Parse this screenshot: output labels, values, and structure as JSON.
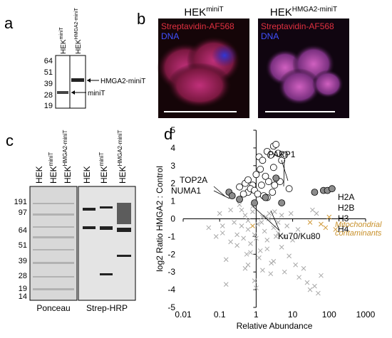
{
  "panel_a": {
    "label": "a",
    "marker_ticks": [
      "64",
      "51",
      "39",
      "28",
      "19"
    ],
    "lanes": [
      {
        "base": "HEK",
        "sup": "miniT"
      },
      {
        "base": "HEK",
        "sup": "HMGA2-miniT"
      }
    ],
    "band_labels": [
      "HMGA2-miniT",
      "miniT"
    ]
  },
  "panel_b": {
    "label": "b",
    "images": [
      {
        "title": {
          "base": "HEK",
          "sup": "miniT"
        },
        "stain": "Streptavidin-AF568",
        "dna": "DNA"
      },
      {
        "title": {
          "base": "HEK",
          "sup": "HMGA2-miniT"
        },
        "stain": "Streptavidin-AF568",
        "dna": "DNA"
      }
    ]
  },
  "panel_c": {
    "label": "c",
    "marker_ticks": [
      "191",
      "97",
      "64",
      "51",
      "39",
      "28",
      "19",
      "14"
    ],
    "lanes": [
      {
        "base": "HEK",
        "sup": ""
      },
      {
        "base": "HEK",
        "sup": "miniT"
      },
      {
        "base": "HEK",
        "sup": "HMGA2-miniT"
      },
      {
        "base": "HEK",
        "sup": ""
      },
      {
        "base": "HEK",
        "sup": "miniT"
      },
      {
        "base": "HEK",
        "sup": "HMGA2-miniT"
      }
    ],
    "blots": [
      "Ponceau",
      "Strep-HRP"
    ]
  },
  "panel_d": {
    "label": "d"
  },
  "chart_data": {
    "type": "scatter",
    "xlabel": "Relative Abundance",
    "ylabel": "log2 Ratio HMGA2 : Control",
    "xscale": "log",
    "xlim": [
      0.01,
      1000
    ],
    "ylim": [
      -5,
      5
    ],
    "xticks": [
      0.01,
      0.1,
      1,
      10,
      100,
      1000
    ],
    "yticks": [
      -5,
      -4,
      -3,
      -2,
      -1,
      0,
      1,
      2,
      3,
      4,
      5
    ],
    "series": [
      {
        "marker": "x",
        "color": "#a8a8a8",
        "x": [
          0.05,
          0.08,
          0.1,
          0.12,
          0.15,
          0.2,
          0.25,
          0.3,
          0.35,
          0.4,
          0.45,
          0.5,
          0.55,
          0.6,
          0.7,
          0.8,
          0.9,
          1.1,
          1.3,
          1.5,
          1.7,
          2,
          2.3,
          2.6,
          3,
          3.5,
          4,
          5,
          6,
          7,
          8,
          10,
          12,
          15,
          20,
          25,
          30,
          40,
          50,
          0.3,
          0.5,
          0.7,
          1,
          1.2,
          1.5,
          2,
          2.5,
          3,
          4,
          5,
          0.4,
          0.6,
          0.9,
          1.4,
          2.2,
          3.2,
          0.2,
          0.8,
          1.8,
          6,
          9,
          14,
          35,
          45,
          60,
          0.15,
          0.12,
          0.6,
          1
        ],
        "values": [
          -0.5,
          -1,
          0.3,
          -0.8,
          -2.3,
          0.5,
          -0.2,
          -1.5,
          0.8,
          -0.4,
          -1.1,
          0.2,
          -2,
          -0.6,
          -1.4,
          0.4,
          -0.9,
          -0.3,
          -1.8,
          0.1,
          -0.7,
          -1.2,
          0.3,
          -2.5,
          -0.5,
          -1,
          -0.2,
          -1.6,
          -3,
          -0.4,
          -2.1,
          -1.2,
          -2.6,
          -3.3,
          -2.8,
          -3.6,
          -4,
          -3.8,
          -4.2,
          -0.9,
          -2.8,
          -1.9,
          -1.1,
          -2.2,
          -2.9,
          -1.7,
          -3.1,
          -2.4,
          -0.8,
          0.2,
          0.5,
          -0.1,
          -3.5,
          -0.2,
          0,
          0.4,
          -1.3,
          0.7,
          0.1,
          -1,
          0.3,
          -0.6,
          0.5,
          0.3,
          -3.2,
          -3.7,
          -0.4,
          -2.6,
          -3.9
        ]
      },
      {
        "marker": "x",
        "color": "#d09a3a",
        "x": [
          60,
          80,
          100,
          150,
          30,
          0.8
        ],
        "values": [
          -0.3,
          -0.5,
          0.1,
          -0.6,
          -0.2,
          -0.4
        ]
      },
      {
        "marker": "circle",
        "color": "#000000",
        "fill": "#ffffff",
        "x": [
          0.35,
          0.5,
          0.6,
          0.8,
          1,
          1.2,
          1.5,
          2,
          2.5,
          3,
          3.5,
          4,
          5,
          6,
          1.3,
          1.8,
          2.2,
          3,
          0.7,
          0.9,
          1.1,
          1.6,
          2.8,
          4.5,
          0.45,
          8,
          2,
          1.4,
          3.2,
          0.6
        ],
        "values": [
          1.8,
          2,
          1.5,
          1.9,
          2.5,
          3.5,
          3.3,
          3.8,
          3.6,
          4.1,
          4.2,
          3.7,
          3.3,
          3.6,
          2.8,
          2.4,
          2.1,
          2.9,
          1.7,
          1.6,
          1.4,
          1.3,
          1.5,
          2.1,
          1.4,
          1.7,
          1.2,
          1.9,
          1.9,
          2.2
        ]
      },
      {
        "marker": "circle",
        "color": "#000000",
        "fill": "#8c8c8c",
        "x": [
          0.18,
          0.22,
          0.35,
          0.9,
          1.8,
          3.5,
          5,
          40,
          70,
          90,
          120
        ],
        "values": [
          1.5,
          1.3,
          1.1,
          0.9,
          1.2,
          2.3,
          0.9,
          1.5,
          1.6,
          1.6,
          1.7
        ]
      }
    ],
    "annotations": [
      "PARP1",
      "TOP2A",
      "NUMA1",
      "H2A",
      "H2B",
      "H3",
      "H4",
      "Ku70/Ku80"
    ],
    "note_lines": [
      "Mitochondrial",
      "contaminants"
    ],
    "note_color": "#c8902a"
  }
}
